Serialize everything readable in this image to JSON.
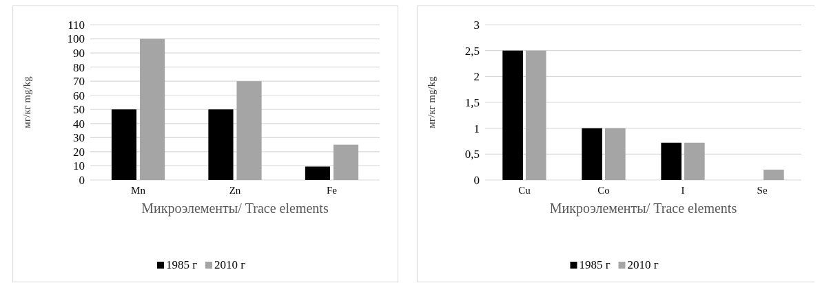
{
  "chart_data": [
    {
      "type": "bar",
      "categories": [
        "Mn",
        "Zn",
        "Fe"
      ],
      "xlabel": "Микроэлементы/ Trace elements",
      "ylabel": "мг/кг  mg/kg",
      "ylim": [
        0,
        110
      ],
      "yticks": [
        0,
        10,
        20,
        30,
        40,
        50,
        60,
        70,
        80,
        90,
        100,
        110
      ],
      "grid": "y",
      "legend": "bottom",
      "series": [
        {
          "name": "1985 г",
          "color": "#000000",
          "values": [
            50,
            50,
            9.5
          ]
        },
        {
          "name": "2010 г",
          "color": "#a5a5a5",
          "values": [
            100,
            70,
            25
          ]
        }
      ]
    },
    {
      "type": "bar",
      "categories": [
        "Cu",
        "Co",
        "I",
        "Se"
      ],
      "xlabel": "Микроэлементы/ Trace elements",
      "ylabel": "мг/кг  mg/kg",
      "ylim": [
        0,
        3
      ],
      "yticks": [
        0,
        {
          "value": 0.5,
          "label": "0,5"
        },
        1,
        {
          "value": 1.5,
          "label": "1,5"
        },
        2,
        {
          "value": 2.5,
          "label": "2,5"
        },
        3
      ],
      "grid": "y",
      "legend": "bottom",
      "series": [
        {
          "name": "1985 г",
          "color": "#000000",
          "values": [
            2.5,
            1,
            0.72,
            null
          ]
        },
        {
          "name": "2010 г",
          "color": "#a5a5a5",
          "values": [
            2.5,
            1,
            0.72,
            0.2
          ]
        }
      ]
    }
  ]
}
